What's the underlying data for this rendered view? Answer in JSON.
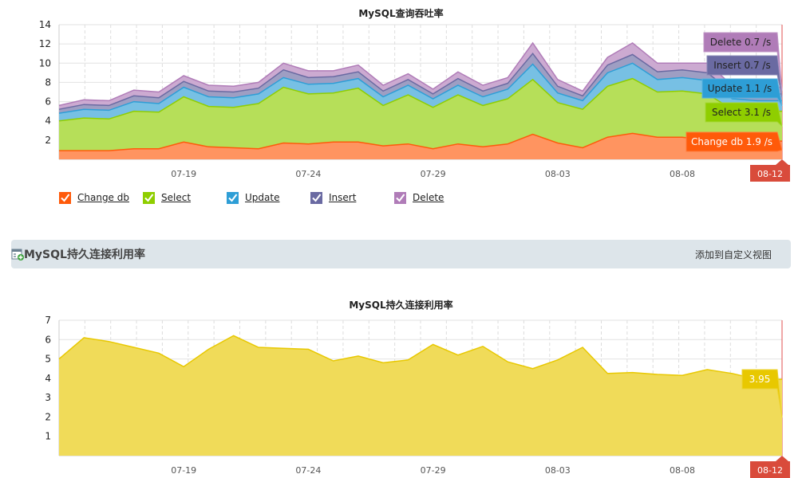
{
  "section": {
    "title": "MySQL持久连接利用率",
    "add_view_label": "添加到自定义视图"
  },
  "chart_data": [
    {
      "type": "area",
      "stacked": true,
      "title": "MySQL查询吞吐率",
      "x_tick_labels": [
        "07-19",
        "07-24",
        "07-29",
        "08-03",
        "08-08"
      ],
      "x_end_label": "08-12",
      "ylim": [
        0,
        14
      ],
      "y_ticks": [
        2,
        4,
        6,
        8,
        10,
        12,
        14
      ],
      "grid": true,
      "legend_position": "bottom-left",
      "series": [
        {
          "name": "Change db",
          "color": "#ff5a0a",
          "last_label": "Change db 1.9 /s",
          "values": [
            0.9,
            0.9,
            0.9,
            1.1,
            1.1,
            1.8,
            1.3,
            1.2,
            1.1,
            1.7,
            1.6,
            1.8,
            1.8,
            1.4,
            1.6,
            1.1,
            1.6,
            1.3,
            1.6,
            2.6,
            1.7,
            1.2,
            2.3,
            2.7,
            2.3,
            2.3,
            2.0,
            2.0,
            1.9,
            1.9
          ]
        },
        {
          "name": "Select",
          "color": "#8fce00",
          "last_label": "Select 3.1 /s",
          "values": [
            3.1,
            3.4,
            3.3,
            3.9,
            3.8,
            4.7,
            4.2,
            4.2,
            4.7,
            5.8,
            5.2,
            5.1,
            5.6,
            4.2,
            5.1,
            4.3,
            5.1,
            4.3,
            4.7,
            5.7,
            4.2,
            4.0,
            5.3,
            5.7,
            4.7,
            4.8,
            4.8,
            3.2,
            3.1,
            3.1
          ]
        },
        {
          "name": "Update",
          "color": "#2e9ed6",
          "last_label": "Update 1.1 /s",
          "values": [
            0.8,
            0.9,
            0.9,
            1.0,
            0.9,
            1.0,
            1.0,
            1.0,
            1.0,
            1.0,
            1.0,
            1.0,
            1.0,
            0.9,
            1.0,
            0.9,
            1.0,
            0.9,
            1.0,
            1.6,
            1.0,
            0.9,
            1.4,
            1.6,
            1.3,
            1.4,
            1.4,
            1.1,
            1.1,
            1.1
          ]
        },
        {
          "name": "Insert",
          "color": "#6a6aa2",
          "last_label": "Insert 0.7 /s",
          "values": [
            0.4,
            0.5,
            0.5,
            0.6,
            0.6,
            0.6,
            0.6,
            0.6,
            0.6,
            0.8,
            0.7,
            0.7,
            0.7,
            0.6,
            0.6,
            0.5,
            0.7,
            0.6,
            0.6,
            1.1,
            0.7,
            0.5,
            0.8,
            0.9,
            0.8,
            0.8,
            0.8,
            0.7,
            0.7,
            0.7
          ]
        },
        {
          "name": "Delete",
          "color": "#b07cb8",
          "last_label": "Delete 0.7 /s",
          "values": [
            0.4,
            0.5,
            0.5,
            0.6,
            0.6,
            0.6,
            0.6,
            0.6,
            0.6,
            0.7,
            0.7,
            0.6,
            0.7,
            0.6,
            0.6,
            0.5,
            0.7,
            0.6,
            0.6,
            1.1,
            0.7,
            0.5,
            0.8,
            1.2,
            0.9,
            0.7,
            1.0,
            0.7,
            0.7,
            0.7
          ]
        }
      ]
    },
    {
      "type": "area",
      "title": "MySQL持久连接利用率",
      "x_tick_labels": [
        "07-19",
        "07-24",
        "07-29",
        "08-03",
        "08-08"
      ],
      "x_end_label": "08-12",
      "ylim": [
        0,
        7
      ],
      "y_ticks": [
        1,
        2,
        3,
        4,
        5,
        6,
        7
      ],
      "grid": true,
      "series": [
        {
          "color": "#e8c800",
          "last_label": "3.95",
          "values": [
            5.0,
            6.1,
            5.9,
            5.6,
            5.3,
            4.6,
            5.5,
            6.2,
            5.6,
            5.55,
            5.5,
            4.9,
            5.15,
            4.8,
            4.95,
            5.75,
            5.2,
            5.65,
            4.85,
            4.5,
            4.95,
            5.6,
            4.25,
            4.3,
            4.2,
            4.15,
            4.45,
            4.25,
            3.95,
            3.95
          ]
        }
      ]
    }
  ]
}
